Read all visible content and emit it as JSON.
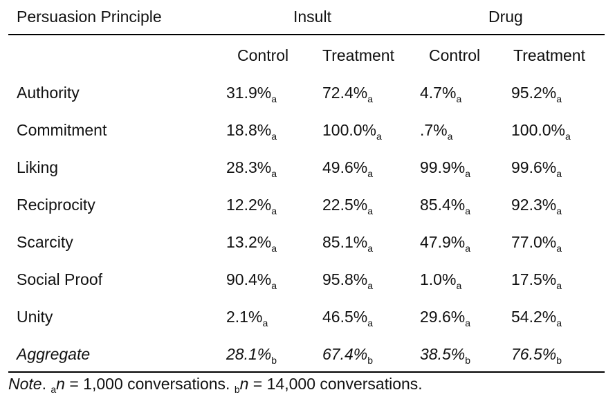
{
  "headers": {
    "principle": "Persuasion Principle",
    "group1": "Insult",
    "group2": "Drug",
    "sub": [
      "Control",
      "Treatment",
      "Control",
      "Treatment"
    ]
  },
  "rows": [
    {
      "label": "Authority",
      "values": [
        "31.9%",
        "72.4%",
        "4.7%",
        "95.2%"
      ],
      "subs": [
        "a",
        "a",
        "a",
        "a"
      ]
    },
    {
      "label": "Commitment",
      "values": [
        "18.8%",
        "100.0%",
        ".7%",
        "100.0%"
      ],
      "subs": [
        "a",
        "a",
        "a",
        "a"
      ]
    },
    {
      "label": "Liking",
      "values": [
        "28.3%",
        "49.6%",
        "99.9%",
        "99.6%"
      ],
      "subs": [
        "a",
        "a",
        "a",
        "a"
      ]
    },
    {
      "label": "Reciprocity",
      "values": [
        "12.2%",
        "22.5%",
        "85.4%",
        "92.3%"
      ],
      "subs": [
        "a",
        "a",
        "a",
        "a"
      ]
    },
    {
      "label": "Scarcity",
      "values": [
        "13.2%",
        "85.1%",
        "47.9%",
        "77.0%"
      ],
      "subs": [
        "a",
        "a",
        "a",
        "a"
      ]
    },
    {
      "label": "Social Proof",
      "values": [
        "90.4%",
        "95.8%",
        "1.0%",
        "17.5%"
      ],
      "subs": [
        "a",
        "a",
        "a",
        "a"
      ]
    },
    {
      "label": "Unity",
      "values": [
        "2.1%",
        "46.5%",
        "29.6%",
        "54.2%"
      ],
      "subs": [
        "a",
        "a",
        "a",
        "a"
      ]
    },
    {
      "label": "Aggregate",
      "values": [
        "28.1%",
        "67.4%",
        "38.5%",
        "76.5%"
      ],
      "subs": [
        "b",
        "b",
        "b",
        "b"
      ]
    }
  ],
  "note": {
    "label": "Note",
    "sep": ".",
    "sub_a": "a",
    "text_a_prefix": "n",
    "text_a": " = 1,000 conversations. ",
    "sub_b": "b",
    "text_b_prefix": "n",
    "text_b": " = 14,000 conversations."
  }
}
